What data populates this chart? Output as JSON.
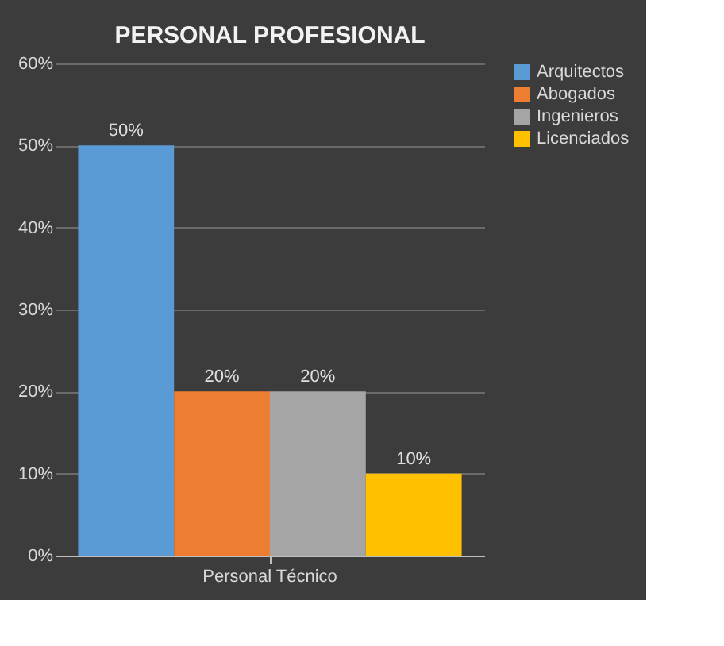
{
  "chart_data": {
    "type": "bar",
    "title": "PERSONAL PROFESIONAL",
    "categories": [
      "Personal Técnico"
    ],
    "series": [
      {
        "name": "Arquitectos",
        "color": "#5b9bd5",
        "values": [
          50
        ],
        "value_labels": [
          "50%"
        ]
      },
      {
        "name": "Abogados",
        "color": "#ed7d31",
        "values": [
          20
        ],
        "value_labels": [
          "20%"
        ]
      },
      {
        "name": "Ingenieros",
        "color": "#a5a5a5",
        "values": [
          20
        ],
        "value_labels": [
          "20%"
        ]
      },
      {
        "name": "Licenciados",
        "color": "#ffc000",
        "values": [
          10
        ],
        "value_labels": [
          "10%"
        ]
      }
    ],
    "ylim": [
      0,
      60
    ],
    "yticks": [
      {
        "value": 0,
        "label": "0%"
      },
      {
        "value": 10,
        "label": "10%"
      },
      {
        "value": 20,
        "label": "20%"
      },
      {
        "value": 30,
        "label": "30%"
      },
      {
        "value": 40,
        "label": "40%"
      },
      {
        "value": 50,
        "label": "50%"
      },
      {
        "value": 60,
        "label": "60%"
      }
    ],
    "grid": "y",
    "legend": "right"
  }
}
